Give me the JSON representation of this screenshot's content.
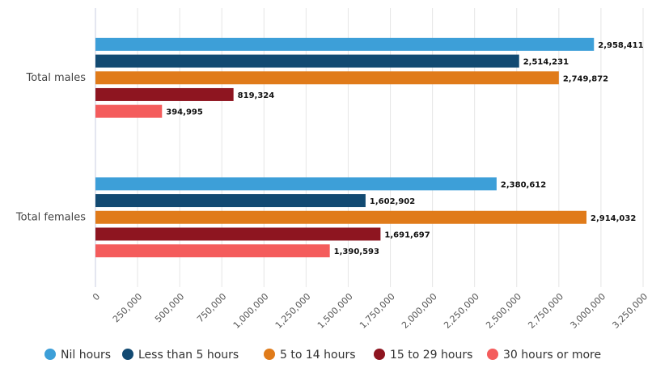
{
  "chart_data": {
    "type": "hbar",
    "categories": [
      "Total males",
      "Total females"
    ],
    "series": [
      {
        "name": "Nil hours",
        "color": "#3d9fd8",
        "values": [
          2958411,
          2380612
        ],
        "value_labels": [
          "2,958,411",
          "2,380,612"
        ]
      },
      {
        "name": "Less than 5 hours",
        "color": "#124a72",
        "values": [
          2514231,
          1602902
        ],
        "value_labels": [
          "2,514,231",
          "1,602,902"
        ]
      },
      {
        "name": "5 to 14 hours",
        "color": "#e07b1a",
        "values": [
          2749872,
          2914032
        ],
        "value_labels": [
          "2,749,872",
          "2,914,032"
        ]
      },
      {
        "name": "15 to 29 hours",
        "color": "#8e1520",
        "values": [
          819324,
          1691697
        ],
        "value_labels": [
          "819,324",
          "1,691,697"
        ]
      },
      {
        "name": "30 hours or more",
        "color": "#f45c5c",
        "values": [
          394995,
          1390593
        ],
        "value_labels": [
          "394,995",
          "1,390,593"
        ]
      }
    ],
    "xlim": [
      0,
      3250000
    ],
    "xticks": [
      0,
      {
        "value": 250000,
        "label": "250,000"
      },
      {
        "value": 500000,
        "label": "500,000"
      },
      {
        "value": 750000,
        "label": "750,000"
      },
      {
        "value": 1000000,
        "label": "1,000,000"
      },
      {
        "value": 1250000,
        "label": "1,250,000"
      },
      {
        "value": 1500000,
        "label": "1,500,000"
      },
      {
        "value": 1750000,
        "label": "1,750,000"
      },
      {
        "value": 2000000,
        "label": "2,000,000"
      },
      {
        "value": 2250000,
        "label": "2,250,000"
      },
      {
        "value": 2500000,
        "label": "2,500,000"
      },
      {
        "value": 2750000,
        "label": "2,750,000"
      },
      {
        "value": 3000000,
        "label": "3,000,000"
      },
      {
        "value": 3250000,
        "label": "3,250,000"
      }
    ],
    "grid": true,
    "legend": "bottom"
  }
}
